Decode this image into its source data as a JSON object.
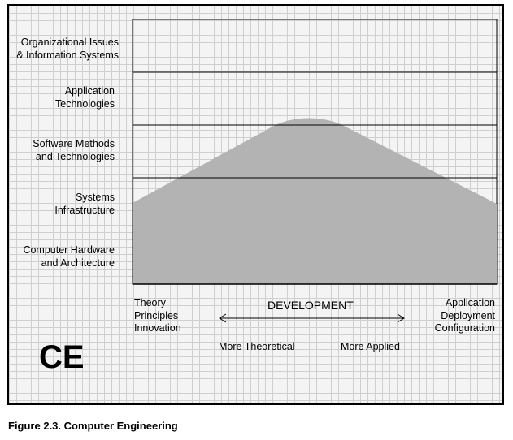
{
  "rows": [
    {
      "label": "Organizational Issues\n& Information Systems"
    },
    {
      "label": "Application\nTechnologies"
    },
    {
      "label": "Software Methods\nand Technologies"
    },
    {
      "label": "Systems\nInfrastructure"
    },
    {
      "label": "Computer Hardware\nand Architecture"
    }
  ],
  "x_axis": {
    "left_label": "Theory\nPrinciples\nInnovation",
    "center_label": "DEVELOPMENT",
    "right_label": "Application\nDeployment\nConfiguration",
    "left_direction": "More Theoretical",
    "right_direction": "More Applied"
  },
  "logo_text": "CE",
  "caption": "Figure 2.3.  Computer Engineering",
  "colors": {
    "grid": "#cfcfcf",
    "background": "#f4f4f4",
    "shape_fill": "#b3b3b3",
    "lines": "#000000"
  }
}
